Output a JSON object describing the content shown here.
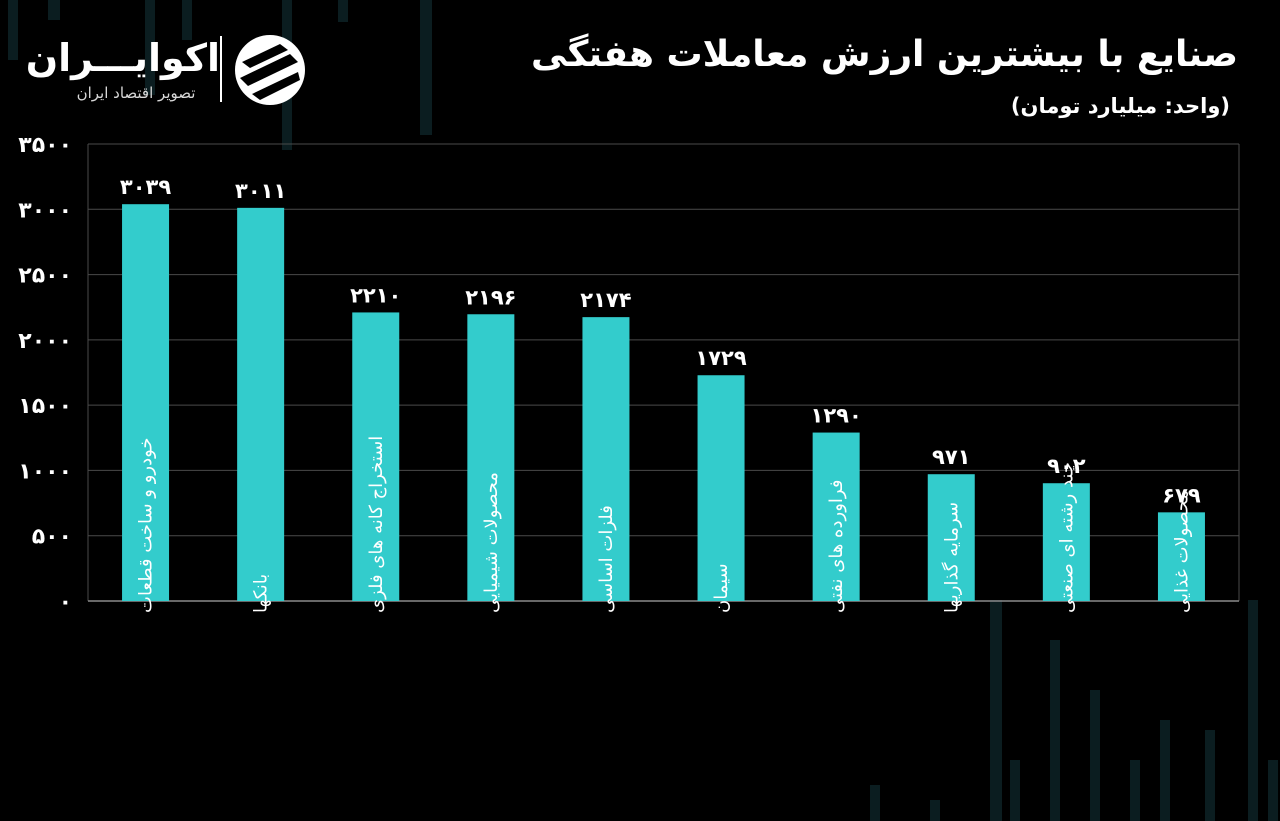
{
  "header": {
    "title": "صنایع با بیشترین ارزش معاملات هفتگی",
    "unit": "(واحد: میلیارد تومان)"
  },
  "logo": {
    "name": "اکوایـــران",
    "tagline": "تصویر اقتصاد ایران"
  },
  "colors": {
    "background": "#000000",
    "bar": "#33cccc",
    "grid": "#4a4a4a",
    "text": "#ffffff"
  },
  "chart_data": {
    "type": "bar",
    "title": "صنایع با بیشترین ارزش معاملات هفتگی",
    "ylabel": "(واحد: میلیارد تومان)",
    "ylim": [
      0,
      3500
    ],
    "yticks": [
      0,
      500,
      1000,
      1500,
      2000,
      2500,
      3000,
      3500
    ],
    "ytick_labels": [
      "۰",
      "۵۰۰",
      "۱۰۰۰",
      "۱۵۰۰",
      "۲۰۰۰",
      "۲۵۰۰",
      "۳۰۰۰",
      "۳۵۰۰"
    ],
    "grid": true,
    "categories": [
      "خودرو و ساخت قطعات",
      "بانکها",
      "استخراج کانه های فلزی",
      "محصولات شیمیایی",
      "فلزات اساسی",
      "سیمان",
      "فراورده های نفتی",
      "سرمایه گذاریها",
      "چند رشته ای صنعتی",
      "محصولات غذایی"
    ],
    "values": [
      3039,
      3011,
      2210,
      2196,
      2174,
      1729,
      1290,
      971,
      902,
      679
    ],
    "value_labels": [
      "۳۰۳۹",
      "۳۰۱۱",
      "۲۲۱۰",
      "۲۱۹۶",
      "۲۱۷۴",
      "۱۷۲۹",
      "۱۲۹۰",
      "۹۷۱",
      "۹۰۲",
      "۶۷۹"
    ]
  }
}
